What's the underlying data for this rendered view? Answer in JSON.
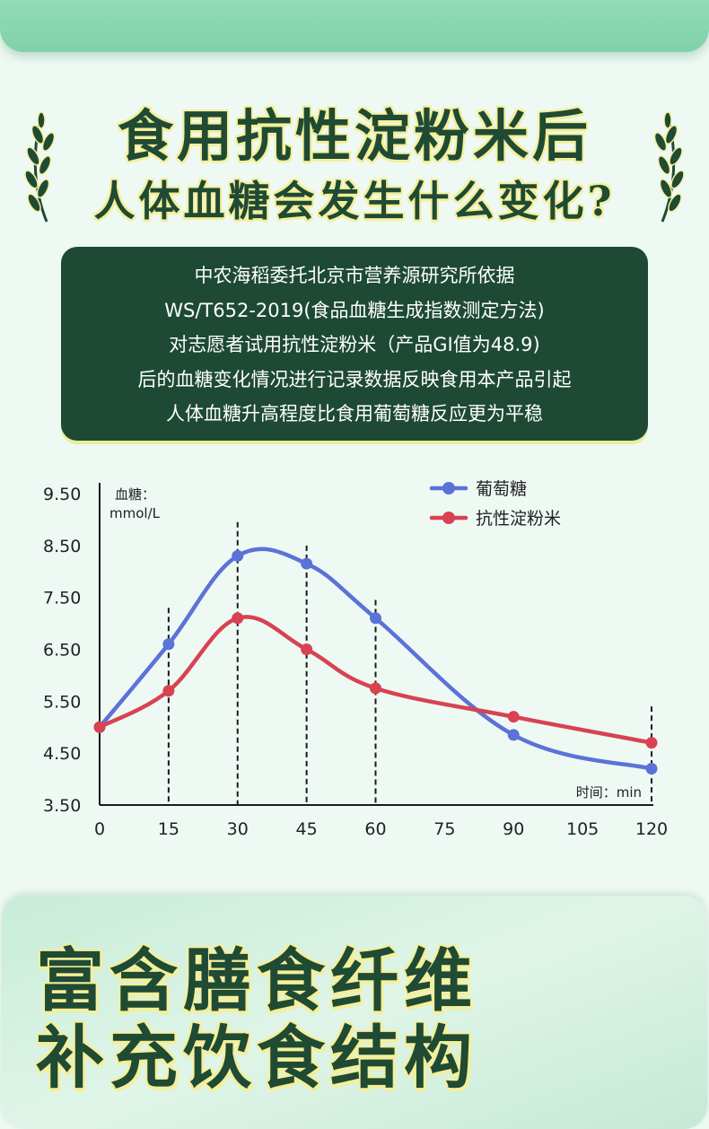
{
  "headline": {
    "line1": "食用抗性淀粉米后",
    "line2": "人体血糖会发生什么变化?"
  },
  "info": {
    "lines": [
      "中农海稻委托北京市营养源研究所依据",
      "WS/T652-2019(食品血糖生成指数测定方法)",
      "对志愿者试用抗性淀粉米（产品GI值为48.9)",
      "后的血糖变化情况进行记录数据反映食用本产品引起",
      "人体血糖升高程度比食用葡萄糖反应更为平稳"
    ]
  },
  "chart_data": {
    "type": "line",
    "ylabel": "血糖：",
    "yunit": "mmol/L",
    "xlabel": "时间：min",
    "x": [
      0,
      15,
      30,
      45,
      60,
      75,
      90,
      105,
      120
    ],
    "xticks": [
      "0",
      "15",
      "30",
      "45",
      "60",
      "75",
      "90",
      "105",
      "120"
    ],
    "yticks": [
      "9.50",
      "8.50",
      "7.50",
      "6.50",
      "5.50",
      "4.50",
      "3.50"
    ],
    "ylim": [
      3.5,
      9.5
    ],
    "xlim": [
      0,
      120
    ],
    "legend_position": "top-right",
    "series": [
      {
        "name": "葡萄糖",
        "color": "#5b72d8",
        "points": [
          [
            0,
            5.0
          ],
          [
            15,
            6.6
          ],
          [
            30,
            8.3
          ],
          [
            45,
            8.15
          ],
          [
            60,
            7.1
          ],
          [
            90,
            4.85
          ],
          [
            120,
            4.2
          ]
        ]
      },
      {
        "name": "抗性淀粉米",
        "color": "#d84252",
        "points": [
          [
            0,
            5.0
          ],
          [
            15,
            5.7
          ],
          [
            30,
            7.1
          ],
          [
            45,
            6.5
          ],
          [
            60,
            5.75
          ],
          [
            90,
            5.2
          ],
          [
            120,
            4.7
          ]
        ]
      }
    ],
    "dashed_markers_x": [
      15,
      30,
      45,
      60,
      120
    ]
  },
  "bottom": {
    "title1": "富含膳食纤维",
    "title2": "补充饮食结构"
  },
  "colors": {
    "dark_green": "#1e4a35",
    "highlight_yellow": "#f4ef9a",
    "background": "#eef9f3"
  }
}
